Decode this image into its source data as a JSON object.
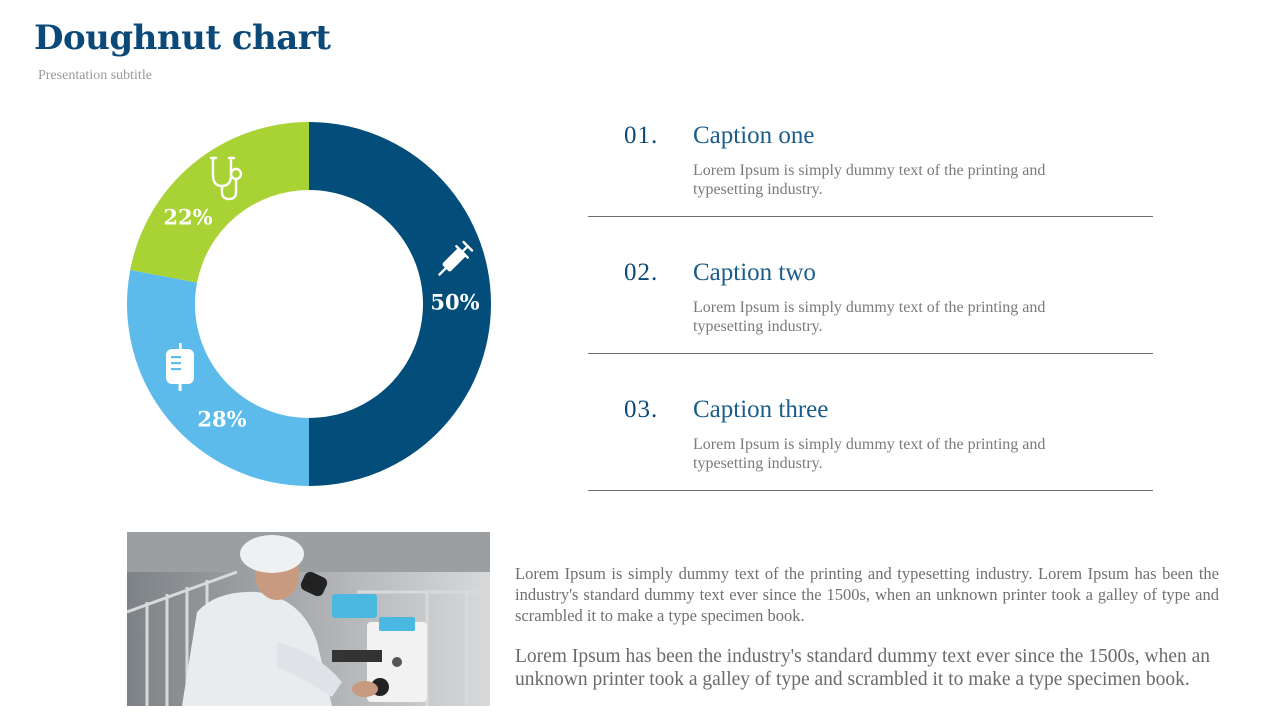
{
  "header": {
    "title": "Doughnut chart",
    "subtitle": "Presentation subtitle"
  },
  "chart_data": {
    "type": "pie",
    "variant": "doughnut",
    "slices": [
      {
        "value": 50,
        "label": "50%",
        "color": "#034d7a",
        "icon": "syringe-icon"
      },
      {
        "value": 28,
        "label": "28%",
        "color": "#5dbbeb",
        "icon": "iv-bag-icon"
      },
      {
        "value": 22,
        "label": "22%",
        "color": "#a9d234",
        "icon": "stethoscope-icon"
      }
    ]
  },
  "captions": [
    {
      "number": "01.",
      "title": "Caption one",
      "body": "Lorem Ipsum is simply dummy text of the printing and typesetting industry."
    },
    {
      "number": "02.",
      "title": "Caption two",
      "body": "Lorem Ipsum is simply dummy text of the printing and typesetting industry."
    },
    {
      "number": "03.",
      "title": "Caption three",
      "body": "Lorem Ipsum is simply dummy text of the printing and typesetting industry."
    }
  ],
  "body_text": {
    "paragraph_1": "Lorem Ipsum is simply dummy text of the printing and typesetting industry. Lorem Ipsum has been the industry's standard dummy text ever since the 1500s, when an unknown printer took a galley of type and scrambled it to make a type specimen book.",
    "paragraph_2": "Lorem Ipsum has been the industry's standard dummy text ever since the 1500s, when an unknown printer took a galley of type and scrambled it to make a type specimen book."
  },
  "colors": {
    "title": "#0b4a78",
    "navy": "#034d7a",
    "sky": "#5dbbeb",
    "lime": "#a9d234",
    "text_gray": "#7a7a7a"
  }
}
